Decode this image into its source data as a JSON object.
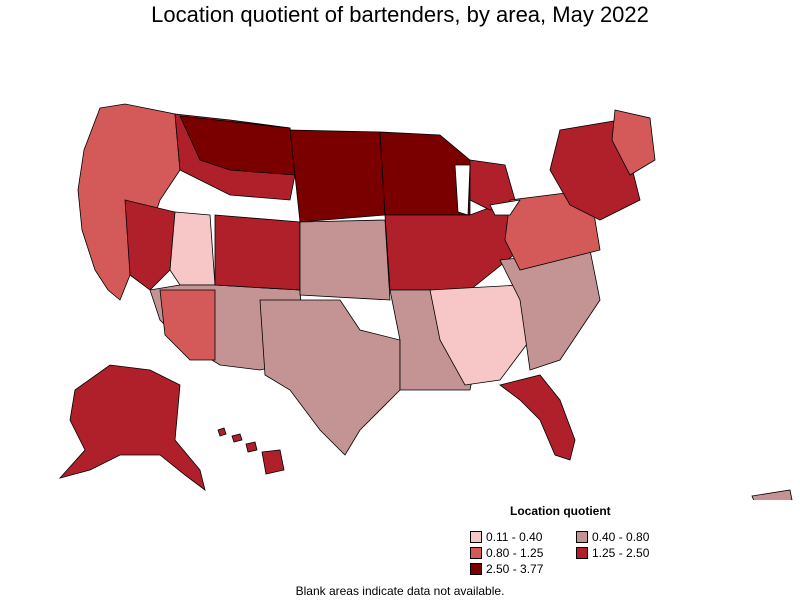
{
  "title": "Location quotient of bartenders, by area, May 2022",
  "legend": {
    "title": "Location quotient",
    "items": [
      {
        "label": "0.11 - 0.40",
        "color": "#f7c6c7"
      },
      {
        "label": "0.40 - 0.80",
        "color": "#c49494"
      },
      {
        "label": "0.80 - 1.25",
        "color": "#d45a5a"
      },
      {
        "label": "1.25 - 2.50",
        "color": "#b0202a"
      },
      {
        "label": "2.50 - 3.77",
        "color": "#7a0000"
      }
    ]
  },
  "footnote": "Blank areas indicate data not available.",
  "colors": {
    "border": "#000000",
    "background": "#ffffff"
  }
}
